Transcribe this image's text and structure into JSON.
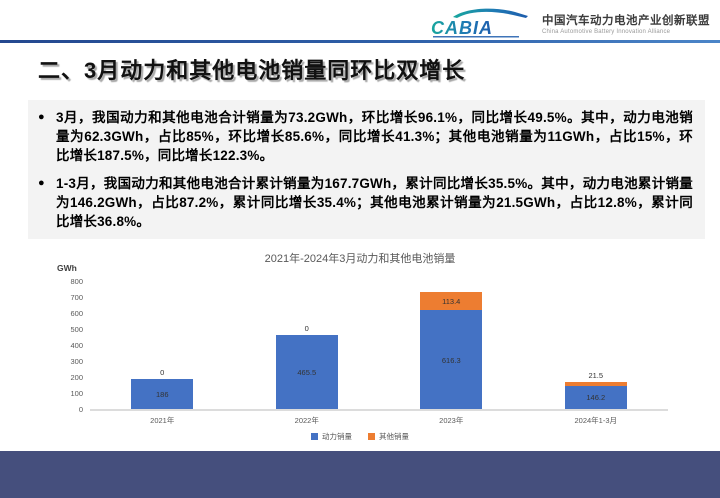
{
  "header": {
    "logo_text": "CABIA",
    "org_cn": "中国汽车动力电池产业创新联盟",
    "org_en": "China Automotive Battery Innovation Alliance"
  },
  "title": "二、3月动力和其他电池销量同环比双增长",
  "bullets": [
    "3月，我国动力和其他电池合计销量为73.2GWh，环比增长96.1%，同比增长49.5%。其中，动力电池销量为62.3GWh，占比85%，环比增长85.6%，同比增长41.3%；其他电池销量为11GWh，占比15%，环比增长187.5%，同比增长122.3%。",
    "1-3月，我国动力和其他电池合计累计销量为167.7GWh，累计同比增长35.5%。其中，动力电池累计销量为146.2GWh，占比87.2%，累计同比增长35.4%；其他电池累计销量为21.5GWh，占比12.8%，累计同比增长36.8%。"
  ],
  "chart_data": {
    "type": "bar",
    "stacked": true,
    "title": "2021年-2024年3月动力和其他电池销量",
    "unit_label": "GWh",
    "categories": [
      "2021年",
      "2022年",
      "2023年",
      "2024年1-3月"
    ],
    "series": [
      {
        "name": "动力销量",
        "color": "#4472c4",
        "values": [
          186,
          465.5,
          616.3,
          146.2
        ],
        "labels": [
          "186",
          "465.5",
          "616.3",
          "146.2"
        ]
      },
      {
        "name": "其他销量",
        "color": "#ed7d31",
        "values": [
          0,
          0,
          113.4,
          21.5
        ],
        "labels": [
          "0",
          "0",
          "113.4",
          "21.5"
        ]
      }
    ],
    "ylim": [
      0,
      800
    ],
    "ytick_step": 100,
    "xlabel": "",
    "ylabel": "GWh",
    "grid": false,
    "legend_position": "bottom"
  },
  "colors": {
    "accent_blue": "#4472c4",
    "accent_orange": "#ed7d31",
    "footer_band": "#454f7d",
    "header_line": "#2e5fa8"
  }
}
